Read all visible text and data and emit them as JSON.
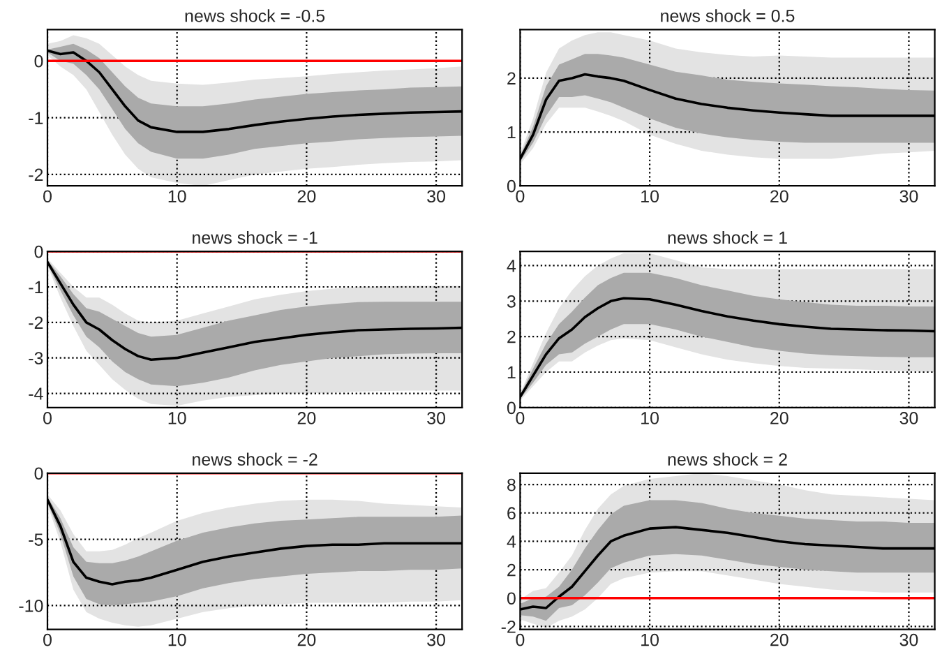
{
  "chart_data": [
    {
      "type": "line",
      "title": "news shock = -0.5",
      "x": [
        0,
        1,
        2,
        3,
        4,
        5,
        6,
        7,
        8,
        10,
        12,
        14,
        16,
        18,
        20,
        22,
        24,
        26,
        28,
        30,
        32
      ],
      "xlim": [
        0,
        32
      ],
      "xticks": [
        0,
        10,
        20,
        30
      ],
      "ylim": [
        -2.2,
        0.55
      ],
      "yticks": [
        -2,
        -1,
        0
      ],
      "grid": true,
      "line_style": "solid",
      "marker": "none",
      "ref_lines": [
        {
          "axis": "y",
          "value": 0,
          "color": "#ff0000"
        }
      ],
      "series": [
        {
          "color": "#e3e3e3",
          "values": [
            null,
            null,
            null,
            null,
            null,
            null,
            null,
            null,
            null,
            null,
            null,
            null,
            null,
            null,
            null,
            null,
            null,
            null,
            null,
            null,
            null
          ],
          "upper": [
            0.3,
            0.35,
            0.45,
            0.4,
            0.3,
            0.1,
            -0.1,
            -0.25,
            -0.35,
            -0.4,
            -0.42,
            -0.38,
            -0.33,
            -0.3,
            -0.27,
            -0.23,
            -0.2,
            -0.17,
            -0.15,
            -0.13,
            -0.1
          ],
          "lower": [
            0.1,
            -0.1,
            -0.25,
            -0.5,
            -0.9,
            -1.3,
            -1.65,
            -1.9,
            -2.05,
            -2.15,
            -2.2,
            -2.1,
            -2.0,
            -1.95,
            -1.9,
            -1.87,
            -1.83,
            -1.8,
            -1.78,
            -1.77,
            -1.75
          ]
        },
        {
          "color": "#aaaaaa",
          "values": [
            null,
            null,
            null,
            null,
            null,
            null,
            null,
            null,
            null,
            null,
            null,
            null,
            null,
            null,
            null,
            null,
            null,
            null,
            null,
            null,
            null
          ],
          "upper": [
            0.2,
            0.25,
            0.3,
            0.2,
            0.05,
            -0.2,
            -0.45,
            -0.65,
            -0.75,
            -0.8,
            -0.8,
            -0.75,
            -0.68,
            -0.63,
            -0.58,
            -0.55,
            -0.52,
            -0.5,
            -0.47,
            -0.46,
            -0.45
          ],
          "lower": [
            0.15,
            0.0,
            -0.05,
            -0.25,
            -0.5,
            -0.85,
            -1.2,
            -1.45,
            -1.6,
            -1.72,
            -1.72,
            -1.65,
            -1.55,
            -1.5,
            -1.45,
            -1.42,
            -1.38,
            -1.36,
            -1.34,
            -1.33,
            -1.32
          ]
        },
        {
          "color": "#000000",
          "values": [
            0.18,
            0.12,
            0.15,
            0.0,
            -0.2,
            -0.5,
            -0.8,
            -1.05,
            -1.17,
            -1.25,
            -1.25,
            -1.2,
            -1.13,
            -1.07,
            -1.02,
            -0.98,
            -0.95,
            -0.93,
            -0.91,
            -0.9,
            -0.89
          ]
        }
      ]
    },
    {
      "type": "line",
      "title": "news shock = 0.5",
      "x": [
        0,
        1,
        2,
        3,
        4,
        5,
        6,
        7,
        8,
        10,
        12,
        14,
        16,
        18,
        20,
        22,
        24,
        26,
        28,
        30,
        32
      ],
      "xlim": [
        0,
        32
      ],
      "xticks": [
        0,
        10,
        20,
        30
      ],
      "ylim": [
        0,
        2.9
      ],
      "yticks": [
        0,
        1,
        2
      ],
      "grid": true,
      "line_style": "solid",
      "marker": "none",
      "series": [
        {
          "color": "#e3e3e3",
          "values": [
            null,
            null,
            null,
            null,
            null,
            null,
            null,
            null,
            null,
            null,
            null,
            null,
            null,
            null,
            null,
            null,
            null,
            null,
            null,
            null,
            null
          ],
          "upper": [
            0.6,
            1.25,
            2.1,
            2.55,
            2.7,
            2.8,
            2.85,
            2.85,
            2.8,
            2.7,
            2.55,
            2.48,
            2.43,
            2.4,
            2.42,
            2.4,
            2.38,
            2.38,
            2.38,
            2.38,
            2.38
          ],
          "lower": [
            0.4,
            0.7,
            1.15,
            1.45,
            1.45,
            1.45,
            1.38,
            1.3,
            1.2,
            0.95,
            0.78,
            0.65,
            0.58,
            0.53,
            0.5,
            0.5,
            0.5,
            0.55,
            0.6,
            0.62,
            0.65
          ]
        },
        {
          "color": "#aaaaaa",
          "values": [
            null,
            null,
            null,
            null,
            null,
            null,
            null,
            null,
            null,
            null,
            null,
            null,
            null,
            null,
            null,
            null,
            null,
            null,
            null,
            null,
            null
          ],
          "upper": [
            0.55,
            1.1,
            1.85,
            2.25,
            2.35,
            2.45,
            2.45,
            2.42,
            2.38,
            2.25,
            2.12,
            2.05,
            1.97,
            1.93,
            1.9,
            1.88,
            1.85,
            1.83,
            1.8,
            1.78,
            1.77
          ],
          "lower": [
            0.45,
            0.8,
            1.3,
            1.65,
            1.65,
            1.68,
            1.62,
            1.55,
            1.45,
            1.25,
            1.08,
            0.97,
            0.9,
            0.85,
            0.82,
            0.8,
            0.8,
            0.8,
            0.8,
            0.8,
            0.8
          ]
        },
        {
          "color": "#000000",
          "values": [
            0.5,
            0.95,
            1.6,
            1.95,
            2.0,
            2.07,
            2.03,
            2.0,
            1.95,
            1.78,
            1.62,
            1.52,
            1.45,
            1.4,
            1.36,
            1.33,
            1.3,
            1.3,
            1.3,
            1.3,
            1.3
          ]
        }
      ]
    },
    {
      "type": "line",
      "title": "news shock = -1",
      "x": [
        0,
        1,
        2,
        3,
        4,
        5,
        6,
        7,
        8,
        10,
        12,
        14,
        16,
        18,
        20,
        22,
        24,
        26,
        28,
        30,
        32
      ],
      "xlim": [
        0,
        32
      ],
      "xticks": [
        0,
        10,
        20,
        30
      ],
      "ylim": [
        -4.4,
        0
      ],
      "yticks": [
        -4,
        -3,
        -2,
        -1,
        0
      ],
      "grid": true,
      "line_style": "solid",
      "marker": "none",
      "ref_lines": [
        {
          "axis": "y",
          "value": 0,
          "color": "#ff0000"
        }
      ],
      "series": [
        {
          "color": "#e3e3e3",
          "values": [
            null,
            null,
            null,
            null,
            null,
            null,
            null,
            null,
            null,
            null,
            null,
            null,
            null,
            null,
            null,
            null,
            null,
            null,
            null,
            null,
            null
          ],
          "upper": [
            -0.2,
            -0.6,
            -1.0,
            -1.3,
            -1.3,
            -1.5,
            -1.75,
            -1.95,
            -2.0,
            -1.95,
            -1.75,
            -1.55,
            -1.35,
            -1.22,
            -1.12,
            -1.05,
            -1.0,
            -0.98,
            -0.97,
            -0.97,
            -0.97
          ],
          "lower": [
            -0.4,
            -1.3,
            -2.1,
            -2.8,
            -3.2,
            -3.6,
            -3.9,
            -4.15,
            -4.3,
            -4.35,
            -4.2,
            -4.1,
            -4.05,
            -4.0,
            -4.0,
            -3.98,
            -3.95,
            -3.93,
            -3.92,
            -3.92,
            -3.92
          ]
        },
        {
          "color": "#aaaaaa",
          "values": [
            null,
            null,
            null,
            null,
            null,
            null,
            null,
            null,
            null,
            null,
            null,
            null,
            null,
            null,
            null,
            null,
            null,
            null,
            null,
            null,
            null
          ],
          "upper": [
            -0.25,
            -0.7,
            -1.2,
            -1.6,
            -1.7,
            -1.9,
            -2.1,
            -2.3,
            -2.4,
            -2.35,
            -2.15,
            -1.95,
            -1.8,
            -1.65,
            -1.55,
            -1.48,
            -1.43,
            -1.42,
            -1.42,
            -1.42,
            -1.42
          ],
          "lower": [
            -0.35,
            -1.1,
            -1.8,
            -2.4,
            -2.7,
            -3.1,
            -3.4,
            -3.6,
            -3.75,
            -3.8,
            -3.7,
            -3.55,
            -3.35,
            -3.2,
            -3.1,
            -3.0,
            -2.95,
            -2.9,
            -2.88,
            -2.87,
            -2.87
          ]
        },
        {
          "color": "#000000",
          "values": [
            -0.3,
            -0.9,
            -1.5,
            -2.0,
            -2.2,
            -2.5,
            -2.75,
            -2.95,
            -3.05,
            -3.0,
            -2.85,
            -2.7,
            -2.55,
            -2.45,
            -2.35,
            -2.28,
            -2.22,
            -2.2,
            -2.18,
            -2.17,
            -2.15
          ]
        }
      ]
    },
    {
      "type": "line",
      "title": "news shock = 1",
      "x": [
        0,
        1,
        2,
        3,
        4,
        5,
        6,
        7,
        8,
        10,
        12,
        14,
        16,
        18,
        20,
        22,
        24,
        26,
        28,
        30,
        32
      ],
      "xlim": [
        0,
        32
      ],
      "xticks": [
        0,
        10,
        20,
        30
      ],
      "ylim": [
        0,
        4.4
      ],
      "yticks": [
        0,
        1,
        2,
        3,
        4
      ],
      "grid": true,
      "line_style": "solid",
      "marker": "none",
      "series": [
        {
          "color": "#e3e3e3",
          "values": [
            null,
            null,
            null,
            null,
            null,
            null,
            null,
            null,
            null,
            null,
            null,
            null,
            null,
            null,
            null,
            null,
            null,
            null,
            null,
            null,
            null
          ],
          "upper": [
            0.4,
            1.25,
            2.1,
            2.8,
            3.3,
            3.7,
            4.0,
            4.2,
            4.35,
            4.35,
            4.15,
            3.95,
            3.9,
            3.9,
            3.9,
            3.9,
            3.9,
            3.9,
            3.9,
            3.9,
            3.9
          ],
          "lower": [
            0.2,
            0.6,
            1.0,
            1.3,
            1.3,
            1.55,
            1.75,
            1.9,
            1.95,
            1.9,
            1.7,
            1.5,
            1.35,
            1.25,
            1.17,
            1.12,
            1.1,
            1.08,
            1.05,
            1.03,
            1.0
          ]
        },
        {
          "color": "#aaaaaa",
          "values": [
            null,
            null,
            null,
            null,
            null,
            null,
            null,
            null,
            null,
            null,
            null,
            null,
            null,
            null,
            null,
            null,
            null,
            null,
            null,
            null,
            null
          ],
          "upper": [
            0.35,
            1.1,
            1.8,
            2.35,
            2.7,
            3.1,
            3.45,
            3.65,
            3.8,
            3.8,
            3.65,
            3.45,
            3.3,
            3.15,
            3.05,
            2.97,
            2.9,
            2.87,
            2.87,
            2.85,
            2.85
          ],
          "lower": [
            0.25,
            0.7,
            1.2,
            1.5,
            1.55,
            1.8,
            2.0,
            2.2,
            2.35,
            2.35,
            2.2,
            2.0,
            1.85,
            1.7,
            1.6,
            1.52,
            1.47,
            1.45,
            1.43,
            1.42,
            1.42
          ]
        },
        {
          "color": "#000000",
          "values": [
            0.3,
            0.9,
            1.5,
            1.95,
            2.2,
            2.55,
            2.8,
            3.0,
            3.08,
            3.05,
            2.9,
            2.72,
            2.57,
            2.45,
            2.35,
            2.28,
            2.22,
            2.2,
            2.18,
            2.17,
            2.15
          ]
        }
      ]
    },
    {
      "type": "line",
      "title": "news shock = -2",
      "x": [
        0,
        1,
        2,
        3,
        4,
        5,
        6,
        7,
        8,
        10,
        12,
        14,
        16,
        18,
        20,
        22,
        24,
        26,
        28,
        30,
        32
      ],
      "xlim": [
        0,
        32
      ],
      "xticks": [
        0,
        10,
        20,
        30
      ],
      "ylim": [
        -11.8,
        0
      ],
      "yticks": [
        -10,
        -5,
        0
      ],
      "grid": true,
      "line_style": "solid",
      "marker": "none",
      "ref_lines": [
        {
          "axis": "y",
          "value": 0,
          "color": "#ff0000"
        }
      ],
      "series": [
        {
          "color": "#e3e3e3",
          "values": [
            null,
            null,
            null,
            null,
            null,
            null,
            null,
            null,
            null,
            null,
            null,
            null,
            null,
            null,
            null,
            null,
            null,
            null,
            null,
            null,
            null
          ],
          "upper": [
            -1.6,
            -2.8,
            -4.6,
            -5.9,
            -5.9,
            -5.8,
            -5.4,
            -4.9,
            -4.5,
            -3.6,
            -3.0,
            -2.6,
            -2.3,
            -2.1,
            -2.0,
            -2.0,
            -2.1,
            -2.3,
            -2.4,
            -2.5,
            -2.6
          ],
          "lower": [
            -2.4,
            -5.2,
            -8.8,
            -10.5,
            -11.0,
            -11.3,
            -11.5,
            -11.6,
            -11.5,
            -11.0,
            -10.5,
            -10.2,
            -10.0,
            -9.9,
            -9.8,
            -9.8,
            -9.8,
            -9.8,
            -9.7,
            -9.7,
            -9.6
          ]
        },
        {
          "color": "#aaaaaa",
          "values": [
            null,
            null,
            null,
            null,
            null,
            null,
            null,
            null,
            null,
            null,
            null,
            null,
            null,
            null,
            null,
            null,
            null,
            null,
            null,
            null,
            null
          ],
          "upper": [
            -1.8,
            -3.4,
            -5.6,
            -6.7,
            -6.8,
            -6.8,
            -6.6,
            -6.3,
            -5.9,
            -5.1,
            -4.5,
            -4.1,
            -3.8,
            -3.6,
            -3.5,
            -3.4,
            -3.3,
            -3.3,
            -3.3,
            -3.3,
            -3.2
          ],
          "lower": [
            -2.2,
            -4.6,
            -7.8,
            -9.5,
            -9.9,
            -10.0,
            -9.9,
            -9.8,
            -9.7,
            -9.3,
            -8.7,
            -8.3,
            -8.0,
            -7.8,
            -7.6,
            -7.5,
            -7.4,
            -7.4,
            -7.3,
            -7.3,
            -7.2
          ]
        },
        {
          "color": "#000000",
          "values": [
            -2.0,
            -4.0,
            -6.7,
            -7.9,
            -8.2,
            -8.4,
            -8.2,
            -8.1,
            -7.9,
            -7.3,
            -6.7,
            -6.3,
            -6.0,
            -5.7,
            -5.5,
            -5.4,
            -5.4,
            -5.3,
            -5.3,
            -5.3,
            -5.3
          ]
        }
      ]
    },
    {
      "type": "line",
      "title": "news shock = 2",
      "x": [
        0,
        1,
        2,
        3,
        4,
        5,
        6,
        7,
        8,
        10,
        12,
        14,
        16,
        18,
        20,
        22,
        24,
        26,
        28,
        30,
        32
      ],
      "xlim": [
        0,
        32
      ],
      "xticks": [
        0,
        10,
        20,
        30
      ],
      "ylim": [
        -2.2,
        8.8
      ],
      "yticks": [
        -2,
        0,
        2,
        4,
        6,
        8
      ],
      "grid": true,
      "line_style": "solid",
      "marker": "none",
      "ref_lines": [
        {
          "axis": "y",
          "value": 0,
          "color": "#ff0000"
        }
      ],
      "series": [
        {
          "color": "#e3e3e3",
          "values": [
            null,
            null,
            null,
            null,
            null,
            null,
            null,
            null,
            null,
            null,
            null,
            null,
            null,
            null,
            null,
            null,
            null,
            null,
            null,
            null,
            null
          ],
          "upper": [
            -0.1,
            0.5,
            0.7,
            1.8,
            3.0,
            4.8,
            6.3,
            7.3,
            7.9,
            8.4,
            8.6,
            8.8,
            8.6,
            8.3,
            8.0,
            7.6,
            7.3,
            7.2,
            7.1,
            7.0,
            6.9
          ],
          "lower": [
            -1.5,
            -1.8,
            -2.1,
            -1.6,
            -1.3,
            -0.8,
            0.0,
            1.0,
            1.4,
            1.8,
            1.9,
            1.9,
            1.6,
            1.3,
            1.0,
            0.8,
            0.6,
            0.5,
            0.4,
            0.4,
            0.4
          ]
        },
        {
          "color": "#aaaaaa",
          "values": [
            null,
            null,
            null,
            null,
            null,
            null,
            null,
            null,
            null,
            null,
            null,
            null,
            null,
            null,
            null,
            null,
            null,
            null,
            null,
            null,
            null
          ],
          "upper": [
            -0.4,
            0.0,
            0.1,
            0.8,
            2.0,
            3.5,
            4.8,
            5.9,
            6.5,
            6.9,
            6.9,
            6.7,
            6.3,
            6.0,
            5.8,
            5.6,
            5.5,
            5.4,
            5.4,
            5.3,
            5.3
          ],
          "lower": [
            -1.2,
            -1.3,
            -1.6,
            -0.7,
            -0.5,
            0.2,
            1.1,
            2.1,
            2.5,
            3.0,
            3.1,
            3.0,
            2.7,
            2.4,
            2.2,
            2.0,
            1.9,
            1.8,
            1.8,
            1.8,
            1.8
          ]
        },
        {
          "color": "#000000",
          "values": [
            -0.8,
            -0.6,
            -0.7,
            0.1,
            0.8,
            1.9,
            3.0,
            4.0,
            4.4,
            4.9,
            5.0,
            4.8,
            4.6,
            4.3,
            4.0,
            3.8,
            3.7,
            3.6,
            3.5,
            3.5,
            3.5
          ]
        }
      ]
    }
  ]
}
